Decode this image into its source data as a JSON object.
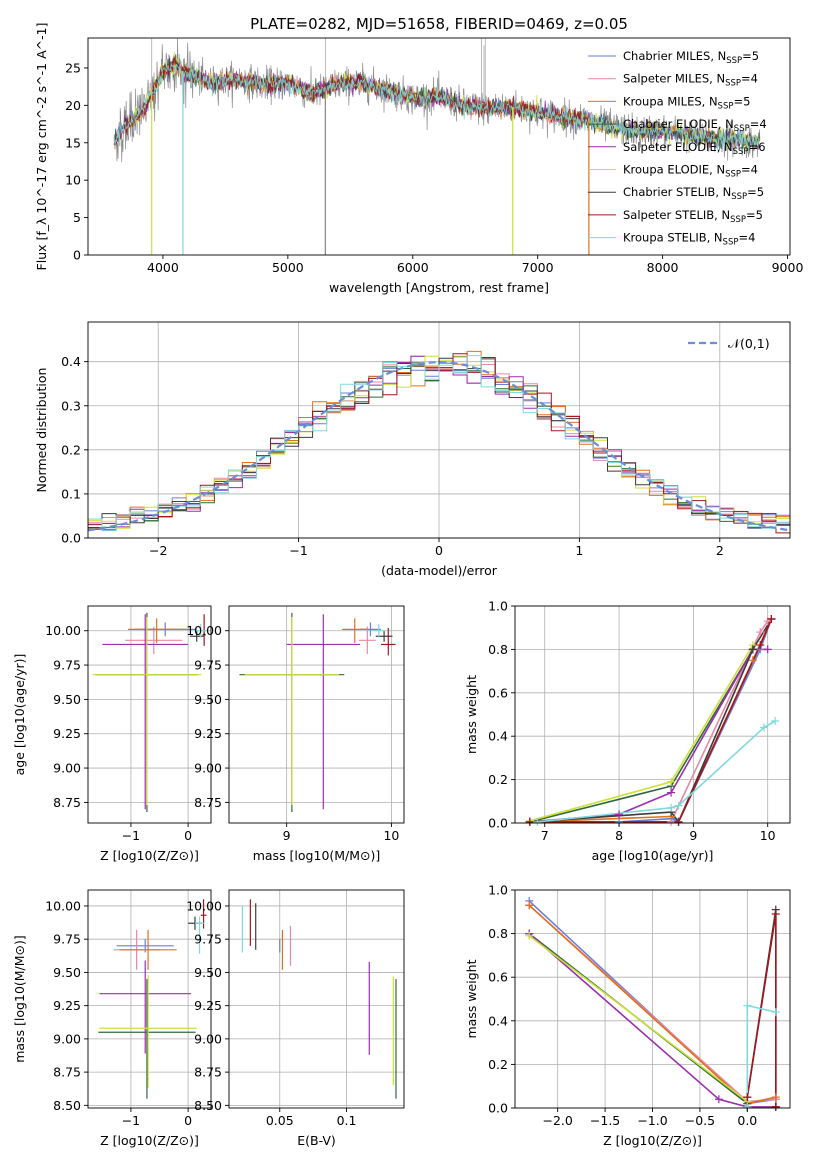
{
  "figure_title": "PLATE=0282, MJD=51658, FIBERID=0469, z=0.05",
  "models": [
    {
      "name": "Chabrier MILES",
      "nssp": "5",
      "color": "#6b7fd6"
    },
    {
      "name": "Salpeter MILES",
      "nssp": "4",
      "color": "#e889a4"
    },
    {
      "name": "Kroupa MILES",
      "nssp": "5",
      "color": "#e0701e"
    },
    {
      "name": "Chabrier ELODIE",
      "nssp": "4",
      "color": "#2f6b3a"
    },
    {
      "name": "Salpeter ELODIE",
      "nssp": "6",
      "color": "#9b2fae"
    },
    {
      "name": "Kroupa ELODIE",
      "nssp": "4",
      "color": "#cde03a"
    },
    {
      "name": "Chabrier STELIB",
      "nssp": "5",
      "color": "#3b3b3b"
    },
    {
      "name": "Salpeter STELIB",
      "nssp": "5",
      "color": "#a3161c"
    },
    {
      "name": "Kroupa STELIB",
      "nssp": "4",
      "color": "#7fd9dd"
    }
  ],
  "chart_data": [
    {
      "id": "spectrum",
      "type": "line",
      "title": "PLATE=0282, MJD=51658, FIBERID=0469, z=0.05",
      "xlabel": "wavelength [Angstrom, rest frame]",
      "ylabel": "Flux [f_λ 10^-17 erg cm^-2 s^-1 A^-1]",
      "xlim": [
        3400,
        9020
      ],
      "ylim": [
        0,
        29
      ],
      "xticks": [
        4000,
        5000,
        6000,
        7000,
        8000,
        9000
      ],
      "yticks": [
        0,
        5,
        10,
        15,
        20,
        25
      ],
      "legend": "upper-right",
      "spectrum_points": [
        [
          3610,
          15.0
        ],
        [
          3700,
          17.5
        ],
        [
          3800,
          18.5
        ],
        [
          3900,
          21.0
        ],
        [
          4000,
          24.5
        ],
        [
          4100,
          25.5
        ],
        [
          4200,
          24.0
        ],
        [
          4400,
          23.0
        ],
        [
          4600,
          23.5
        ],
        [
          4800,
          22.8
        ],
        [
          5000,
          23.0
        ],
        [
          5200,
          21.5
        ],
        [
          5400,
          22.8
        ],
        [
          5600,
          23.0
        ],
        [
          5800,
          22.0
        ],
        [
          6000,
          21.0
        ],
        [
          6200,
          21.2
        ],
        [
          6400,
          20.0
        ],
        [
          6600,
          19.5
        ],
        [
          6800,
          19.8
        ],
        [
          7000,
          19.0
        ],
        [
          7200,
          18.5
        ],
        [
          7400,
          18.0
        ],
        [
          7600,
          17.0
        ],
        [
          7800,
          16.5
        ],
        [
          8000,
          16.5
        ],
        [
          8200,
          16.0
        ],
        [
          8400,
          15.5
        ],
        [
          8600,
          15.5
        ],
        [
          8750,
          15.0
        ]
      ],
      "absorption_dips": [
        [
          4160,
          0
        ],
        [
          3910,
          0
        ],
        [
          6800,
          0
        ],
        [
          7410,
          0
        ],
        [
          5300,
          0
        ]
      ]
    },
    {
      "id": "residuals",
      "type": "step",
      "xlabel": "(data-model)/error",
      "ylabel": "Normed distribution",
      "xlim": [
        -2.5,
        2.5
      ],
      "ylim": [
        0,
        0.49
      ],
      "xticks": [
        -2,
        -1,
        0,
        1,
        2
      ],
      "yticks": [
        0.0,
        0.1,
        0.2,
        0.3,
        0.4
      ],
      "legend_label": "𝒩(0,1)",
      "gauss_color": "#6a8fd8"
    },
    {
      "id": "age_vs_Z",
      "type": "errorbar",
      "xlabel": "Z [log10(Z/Z⊙)]",
      "ylabel": "age [log10(age/yr)]",
      "xlim": [
        -1.75,
        0.4
      ],
      "ylim": [
        8.6,
        10.18
      ],
      "xticks": [
        -1,
        0
      ],
      "yticks": [
        8.75,
        9.0,
        9.25,
        9.5,
        9.75,
        10.0
      ]
    },
    {
      "id": "age_vs_mass",
      "type": "errorbar",
      "xlabel": "mass [log10(M/M⊙)]",
      "xlim": [
        8.45,
        10.12
      ],
      "ylim": [
        8.6,
        10.18
      ],
      "xticks": [
        9,
        10
      ],
      "yticks": [
        8.75,
        9.0,
        9.25,
        9.5,
        9.75,
        10.0
      ]
    },
    {
      "id": "massweight_vs_age",
      "type": "line",
      "xlabel": "age [log10(age/yr)]",
      "ylabel": "mass weight",
      "xlim": [
        6.6,
        10.3
      ],
      "ylim": [
        0,
        1.0
      ],
      "xticks": [
        7,
        8,
        9,
        10
      ],
      "yticks": [
        0.0,
        0.2,
        0.4,
        0.6,
        0.8,
        1.0
      ]
    },
    {
      "id": "mass_vs_Z",
      "type": "errorbar",
      "xlabel": "Z [log10(Z/Z⊙)]",
      "ylabel": "mass [log10(M/M⊙)]",
      "xlim": [
        -1.75,
        0.4
      ],
      "ylim": [
        8.48,
        10.12
      ],
      "xticks": [
        -1,
        0
      ],
      "yticks": [
        8.5,
        8.75,
        9.0,
        9.25,
        9.5,
        9.75,
        10.0
      ]
    },
    {
      "id": "mass_vs_EBV",
      "type": "errorbar",
      "xlabel": "E(B-V)",
      "xlim": [
        0.012,
        0.143
      ],
      "ylim": [
        8.48,
        10.12
      ],
      "xticks": [
        0.05,
        0.1
      ],
      "yticks": [
        8.5,
        8.75,
        9.0,
        9.25,
        9.5,
        9.75,
        10.0
      ]
    },
    {
      "id": "massweight_vs_Z",
      "type": "line",
      "xlabel": "Z [log10(Z/Z⊙)]",
      "ylabel": "mass weight",
      "xlim": [
        -2.45,
        0.45
      ],
      "ylim": [
        0,
        1.0
      ],
      "xticks": [
        -2.0,
        -1.5,
        -1.0,
        -0.5,
        0.0
      ],
      "yticks": [
        0.0,
        0.2,
        0.4,
        0.6,
        0.8,
        1.0
      ]
    }
  ],
  "errorbars": {
    "age_vs_Z": [
      {
        "m": 0,
        "x": -0.4,
        "y": 10.01,
        "xerr": 0.55,
        "yerr": [
          0.05,
          0.05
        ]
      },
      {
        "m": 1,
        "x": -0.6,
        "y": 9.93,
        "xerr": 0.5,
        "yerr": [
          0.1,
          0.1
        ]
      },
      {
        "m": 2,
        "x": -0.55,
        "y": 10.01,
        "xerr": 0.5,
        "yerr": [
          0.1,
          0.08
        ]
      },
      {
        "m": 3,
        "x": -0.72,
        "y": 9.68,
        "xerr": 0.9,
        "yerr": [
          1.0,
          0.45
        ]
      },
      {
        "m": 4,
        "x": -0.75,
        "y": 9.9,
        "xerr": 0.75,
        "yerr": [
          1.2,
          0.22
        ]
      },
      {
        "m": 5,
        "x": -0.72,
        "y": 9.68,
        "xerr": 0.95,
        "yerr": [
          0.95,
          0.42
        ]
      },
      {
        "m": 6,
        "x": 0.15,
        "y": 9.96,
        "xerr": 0.12,
        "yerr": [
          0.04,
          0.04
        ]
      },
      {
        "m": 7,
        "x": 0.28,
        "y": 9.97,
        "xerr": 0.03,
        "yerr": [
          0.08,
          0.15
        ]
      },
      {
        "m": 8,
        "x": 0.22,
        "y": 10.0,
        "xerr": 0.1,
        "yerr": [
          0.05,
          0.05
        ]
      }
    ],
    "age_vs_mass": [
      {
        "m": 0,
        "x": 9.8,
        "y": 10.01,
        "xerr": 0.1,
        "yerr": [
          0.05,
          0.05
        ]
      },
      {
        "m": 1,
        "x": 9.77,
        "y": 9.93,
        "xerr": 0.08,
        "yerr": [
          0.1,
          0.1
        ]
      },
      {
        "m": 2,
        "x": 9.65,
        "y": 10.01,
        "xerr": 0.12,
        "yerr": [
          0.1,
          0.08
        ]
      },
      {
        "m": 3,
        "x": 9.05,
        "y": 9.68,
        "xerr": 0.5,
        "yerr": [
          1.0,
          0.45
        ]
      },
      {
        "m": 4,
        "x": 9.35,
        "y": 9.9,
        "xerr": 0.35,
        "yerr": [
          1.2,
          0.22
        ]
      },
      {
        "m": 5,
        "x": 9.05,
        "y": 9.68,
        "xerr": 0.45,
        "yerr": [
          0.95,
          0.42
        ]
      },
      {
        "m": 6,
        "x": 9.93,
        "y": 9.96,
        "xerr": 0.08,
        "yerr": [
          0.04,
          0.04
        ]
      },
      {
        "m": 7,
        "x": 9.97,
        "y": 9.9,
        "xerr": 0.07,
        "yerr": [
          0.08,
          0.12
        ]
      },
      {
        "m": 8,
        "x": 9.88,
        "y": 10.0,
        "xerr": 0.06,
        "yerr": [
          0.05,
          0.05
        ]
      }
    ],
    "mass_vs_Z": [
      {
        "m": 0,
        "x": -0.75,
        "y": 9.7,
        "xerr": 0.5,
        "yerr": [
          0.05,
          0.05
        ]
      },
      {
        "m": 1,
        "x": -0.9,
        "y": 9.67,
        "xerr": 0.4,
        "yerr": [
          0.15,
          0.15
        ]
      },
      {
        "m": 2,
        "x": -0.7,
        "y": 9.67,
        "xerr": 0.5,
        "yerr": [
          0.15,
          0.15
        ]
      },
      {
        "m": 3,
        "x": -0.72,
        "y": 9.05,
        "xerr": 0.85,
        "yerr": [
          0.5,
          0.4
        ]
      },
      {
        "m": 4,
        "x": -0.75,
        "y": 9.34,
        "xerr": 0.8,
        "yerr": [
          0.45,
          0.25
        ]
      },
      {
        "m": 5,
        "x": -0.7,
        "y": 9.08,
        "xerr": 0.85,
        "yerr": [
          0.45,
          0.4
        ]
      },
      {
        "m": 6,
        "x": 0.12,
        "y": 9.87,
        "xerr": 0.12,
        "yerr": [
          0.05,
          0.05
        ]
      },
      {
        "m": 7,
        "x": 0.27,
        "y": 9.93,
        "xerr": 0.05,
        "yerr": [
          0.1,
          0.12
        ]
      },
      {
        "m": 8,
        "x": 0.2,
        "y": 9.87,
        "xerr": 0.08,
        "yerr": [
          0.23,
          0.05
        ]
      }
    ],
    "mass_vs_EBV": [
      {
        "m": 0,
        "x": 0.05,
        "y": 9.7,
        "xerr": 0.0,
        "yerr": [
          0.05,
          0.05
        ]
      },
      {
        "m": 1,
        "x": 0.058,
        "y": 9.7,
        "xerr": 0.0,
        "yerr": [
          0.15,
          0.15
        ]
      },
      {
        "m": 2,
        "x": 0.052,
        "y": 9.67,
        "xerr": 0.0,
        "yerr": [
          0.15,
          0.15
        ]
      },
      {
        "m": 3,
        "x": 0.137,
        "y": 9.05,
        "xerr": 0.0,
        "yerr": [
          0.5,
          0.4
        ]
      },
      {
        "m": 4,
        "x": 0.117,
        "y": 9.23,
        "xerr": 0.0,
        "yerr": [
          0.35,
          0.35
        ]
      },
      {
        "m": 5,
        "x": 0.135,
        "y": 9.05,
        "xerr": 0.0,
        "yerr": [
          0.4,
          0.42
        ]
      },
      {
        "m": 6,
        "x": 0.032,
        "y": 9.87,
        "xerr": 0.0,
        "yerr": [
          0.2,
          0.15
        ]
      },
      {
        "m": 7,
        "x": 0.028,
        "y": 9.9,
        "xerr": 0.0,
        "yerr": [
          0.2,
          0.15
        ]
      },
      {
        "m": 8,
        "x": 0.022,
        "y": 9.85,
        "xerr": 0.0,
        "yerr": [
          0.2,
          0.15
        ]
      }
    ]
  },
  "weight_lines": {
    "massweight_vs_age": [
      {
        "m": 0,
        "pts": [
          [
            6.8,
            0.005
          ],
          [
            8.0,
            0.005
          ],
          [
            8.7,
            0.02
          ],
          [
            8.8,
            0.005
          ],
          [
            9.9,
            0.8
          ],
          [
            10.05,
            0.94
          ]
        ]
      },
      {
        "m": 1,
        "pts": [
          [
            6.8,
            0.005
          ],
          [
            8.7,
            0.005
          ],
          [
            9.9,
            0.88
          ],
          [
            10.0,
            0.93
          ]
        ]
      },
      {
        "m": 2,
        "pts": [
          [
            6.8,
            0.005
          ],
          [
            8.7,
            0.03
          ],
          [
            8.8,
            0.005
          ],
          [
            9.8,
            0.75
          ],
          [
            10.05,
            0.94
          ]
        ]
      },
      {
        "m": 3,
        "pts": [
          [
            6.8,
            0.005
          ],
          [
            8.7,
            0.17
          ],
          [
            9.8,
            0.8
          ]
        ]
      },
      {
        "m": 4,
        "pts": [
          [
            6.8,
            0.005
          ],
          [
            8.0,
            0.04
          ],
          [
            8.7,
            0.14
          ],
          [
            9.8,
            0.8
          ],
          [
            10.0,
            0.8
          ]
        ]
      },
      {
        "m": 5,
        "pts": [
          [
            6.8,
            0.01
          ],
          [
            8.7,
            0.19
          ],
          [
            9.8,
            0.82
          ]
        ]
      },
      {
        "m": 6,
        "pts": [
          [
            6.8,
            0.005
          ],
          [
            8.7,
            0.05
          ],
          [
            8.8,
            0.005
          ],
          [
            9.8,
            0.8
          ],
          [
            10.05,
            0.94
          ]
        ]
      },
      {
        "m": 7,
        "pts": [
          [
            6.8,
            0.005
          ],
          [
            8.8,
            0.005
          ],
          [
            9.9,
            0.82
          ],
          [
            10.05,
            0.94
          ]
        ]
      },
      {
        "m": 8,
        "pts": [
          [
            6.9,
            0.005
          ],
          [
            8.7,
            0.07
          ],
          [
            8.8,
            0.08
          ],
          [
            9.95,
            0.44
          ],
          [
            10.1,
            0.47
          ]
        ]
      }
    ],
    "massweight_vs_Z": [
      {
        "m": 0,
        "pts": [
          [
            -2.3,
            0.95
          ],
          [
            0.0,
            0.02
          ],
          [
            0.3,
            0.04
          ]
        ]
      },
      {
        "m": 1,
        "pts": [
          [
            -2.3,
            0.93
          ],
          [
            0.0,
            0.03
          ],
          [
            0.3,
            0.04
          ]
        ]
      },
      {
        "m": 2,
        "pts": [
          [
            -2.3,
            0.93
          ],
          [
            0.0,
            0.02
          ],
          [
            0.3,
            0.05
          ]
        ]
      },
      {
        "m": 3,
        "pts": [
          [
            -2.3,
            0.8
          ],
          [
            0.0,
            0.02
          ],
          [
            0.0,
            0.005
          ]
        ]
      },
      {
        "m": 4,
        "pts": [
          [
            -2.3,
            0.8
          ],
          [
            -0.3,
            0.04
          ],
          [
            0.0,
            0.005
          ],
          [
            0.3,
            0.005
          ]
        ]
      },
      {
        "m": 5,
        "pts": [
          [
            -2.3,
            0.79
          ],
          [
            0.0,
            0.03
          ]
        ]
      },
      {
        "m": 6,
        "pts": [
          [
            0.0,
            0.005
          ],
          [
            0.0,
            0.05
          ],
          [
            0.3,
            0.91
          ],
          [
            0.3,
            0.005
          ]
        ]
      },
      {
        "m": 7,
        "pts": [
          [
            0.0,
            0.005
          ],
          [
            0.0,
            0.05
          ],
          [
            0.3,
            0.89
          ],
          [
            0.3,
            0.005
          ]
        ]
      },
      {
        "m": 8,
        "pts": [
          [
            0.0,
            0.005
          ],
          [
            0.0,
            0.47
          ],
          [
            0.3,
            0.44
          ]
        ]
      }
    ]
  }
}
